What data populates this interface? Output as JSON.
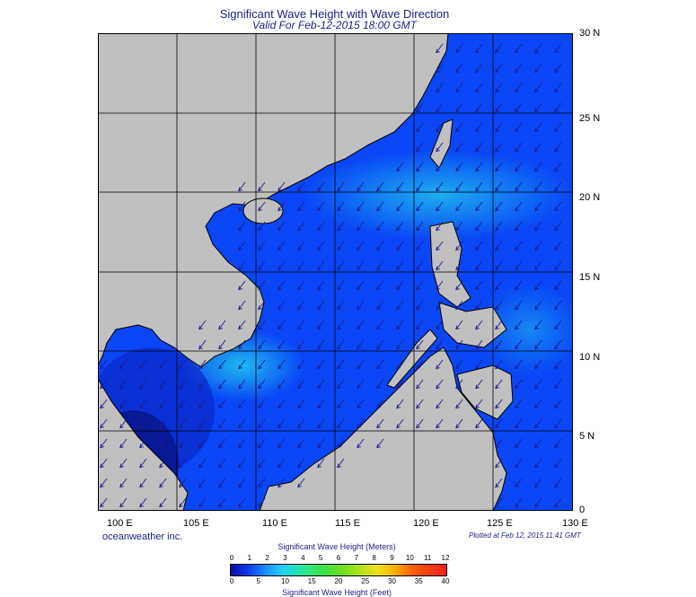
{
  "title": "Significant Wave Height with Wave Direction",
  "subtitle": "Valid For Feb-12-2015 18:00 GMT",
  "lat_labels": [
    "30 N",
    "25 N",
    "20 N",
    "15 N",
    "10 N",
    "5 N",
    "0"
  ],
  "lon_labels": [
    "100 E",
    "105 E",
    "110 E",
    "115 E",
    "120 E",
    "125 E",
    "130 E"
  ],
  "brand": "oceanweather inc.",
  "plotted": "Plotted at Feb 12, 2015 11:41 GMT",
  "colorbar": {
    "meters_title": "Significant Wave Height (Meters)",
    "feet_title": "Significant Wave Height (Feet)",
    "meters_ticks": [
      "0",
      "1",
      "2",
      "3",
      "4",
      "5",
      "6",
      "7",
      "8",
      "9",
      "10",
      "11",
      "12"
    ],
    "feet_ticks": [
      "0",
      "5",
      "10",
      "15",
      "20",
      "25",
      "30",
      "35",
      "40"
    ]
  },
  "map_extent": {
    "lon": [
      100,
      130
    ],
    "lat": [
      0,
      30
    ]
  },
  "colors": {
    "land": "#c0c0c0",
    "sea_low": "#0a3cf0",
    "sea_high": "#22d0f0",
    "arrow": "#1c1c8c",
    "title": "#1c1c8c"
  },
  "wave_direction": "mostly toward southwest"
}
